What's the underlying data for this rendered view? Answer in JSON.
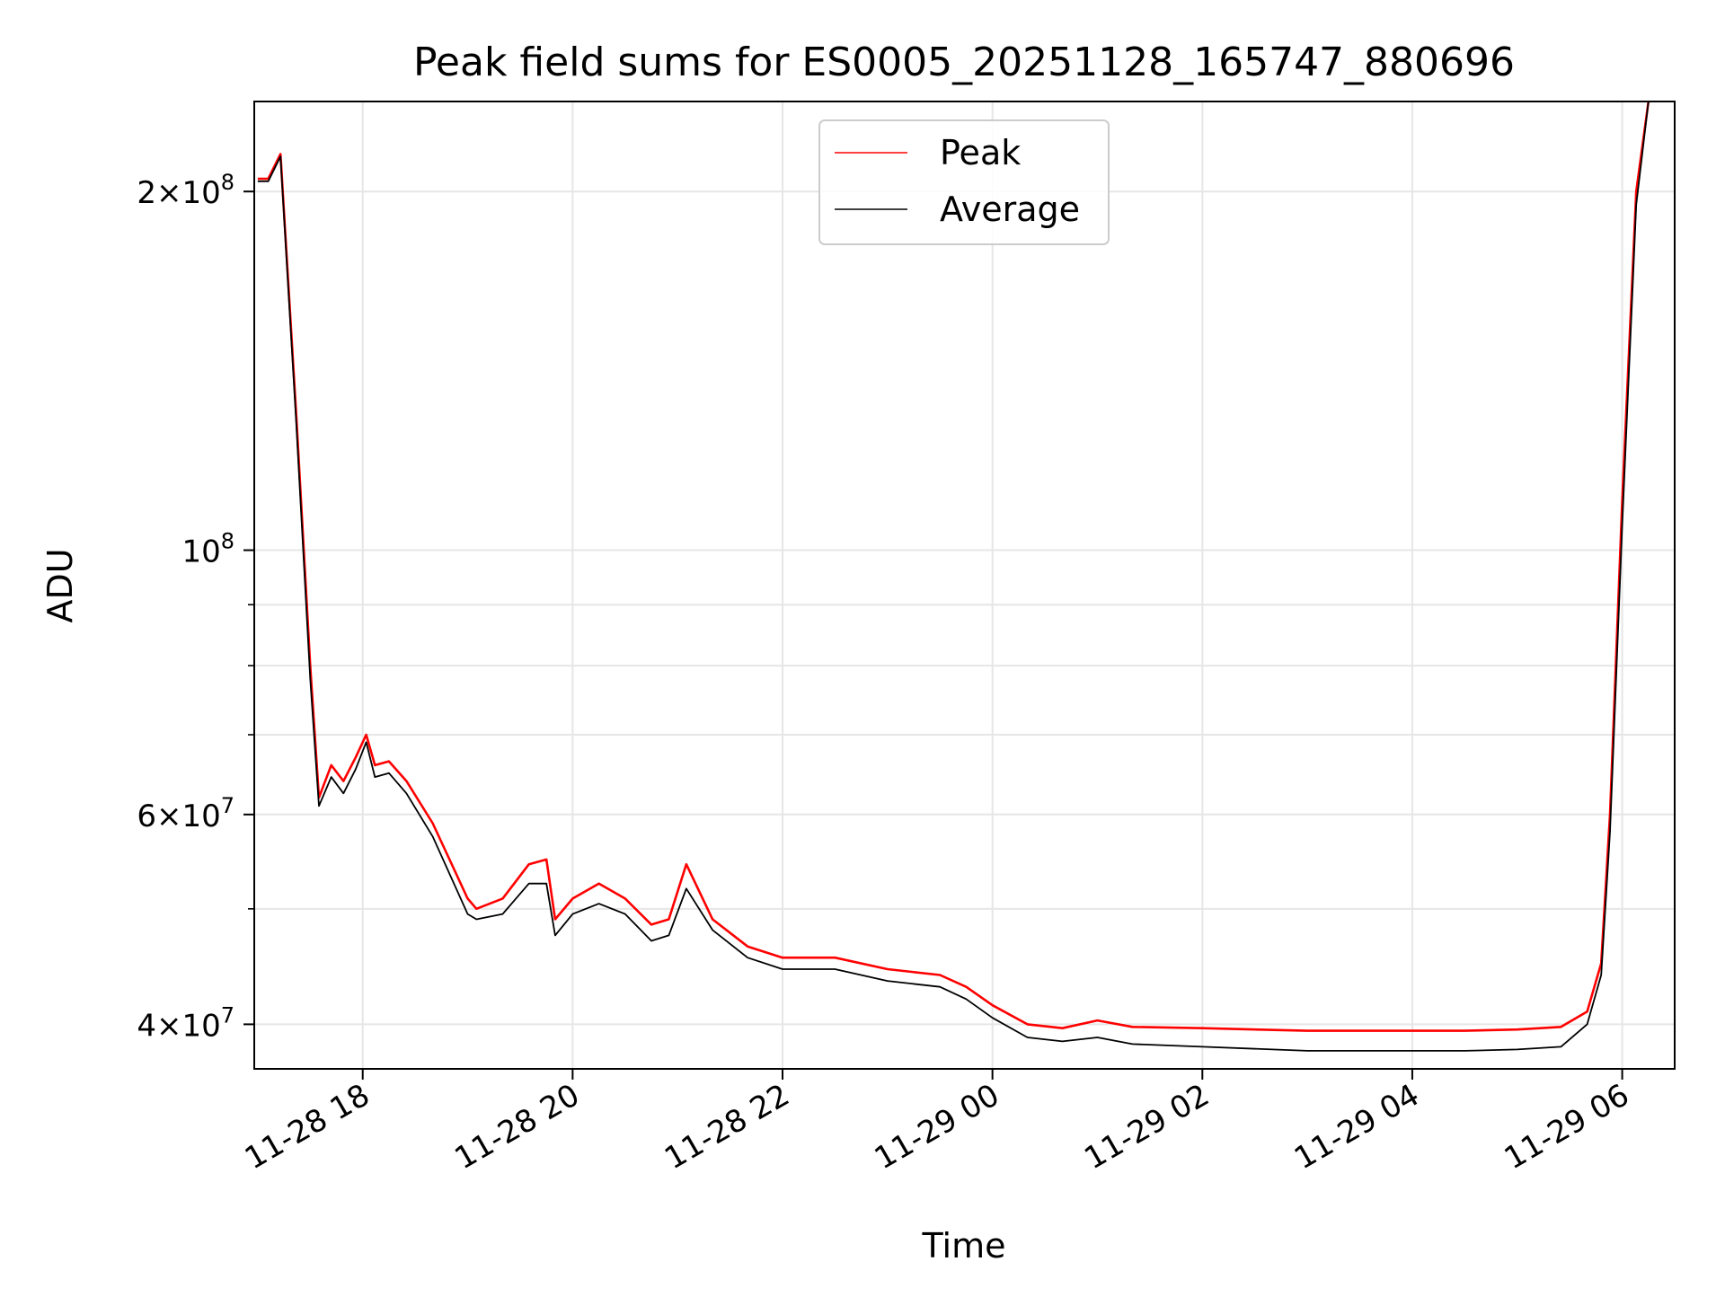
{
  "chart_data": {
    "type": "line",
    "title": "Peak field sums for ES0005_20251128_165747_880696",
    "xlabel": "Time",
    "ylabel": "ADU",
    "y_scale": "log",
    "ylim": [
      36700000,
      238000000
    ],
    "x_range": [
      "11-28 16:58",
      "11-29 06:30"
    ],
    "grid": true,
    "legend_position": "upper center",
    "x_ticks": [
      "11-28 18",
      "11-28 20",
      "11-28 22",
      "11-29 00",
      "11-29 02",
      "11-29 04",
      "11-29 06"
    ],
    "y_ticks": [
      {
        "value": 200000000,
        "base": "2×10",
        "exp": "8"
      },
      {
        "value": 100000000,
        "base": "10",
        "exp": "8"
      },
      {
        "value": 60000000,
        "base": "6×10",
        "exp": "7"
      },
      {
        "value": 40000000,
        "base": "4×10",
        "exp": "7"
      }
    ],
    "series": [
      {
        "name": "Peak",
        "color": "#ff0000",
        "x": [
          "11-28 17:00",
          "11-28 17:06",
          "11-28 17:13",
          "11-28 17:22",
          "11-28 17:30",
          "11-28 17:35",
          "11-28 17:42",
          "11-28 17:49",
          "11-28 17:56",
          "11-28 18:02",
          "11-28 18:07",
          "11-28 18:15",
          "11-28 18:25",
          "11-28 18:40",
          "11-28 19:00",
          "11-28 19:05",
          "11-28 19:20",
          "11-28 19:35",
          "11-28 19:45",
          "11-28 19:50",
          "11-28 20:00",
          "11-28 20:15",
          "11-28 20:30",
          "11-28 20:45",
          "11-28 20:55",
          "11-28 21:05",
          "11-28 21:20",
          "11-28 21:40",
          "11-28 22:00",
          "11-28 22:30",
          "11-28 23:00",
          "11-28 23:30",
          "11-28 23:45",
          "11-29 00:00",
          "11-29 00:20",
          "11-29 00:40",
          "11-29 01:00",
          "11-29 01:20",
          "11-29 02:00",
          "11-29 03:00",
          "11-29 04:00",
          "11-29 04:30",
          "11-29 05:00",
          "11-29 05:25",
          "11-29 05:40",
          "11-29 05:48",
          "11-29 05:53",
          "11-29 06:00",
          "11-29 06:08",
          "11-29 06:15"
        ],
        "values": [
          205000000,
          205000000,
          215000000,
          130000000,
          80000000,
          62000000,
          66000000,
          64000000,
          67000000,
          70000000,
          66000000,
          66500000,
          64000000,
          59000000,
          51000000,
          50000000,
          51000000,
          54500000,
          55000000,
          49000000,
          51000000,
          52500000,
          51000000,
          48500000,
          49000000,
          54500000,
          49000000,
          46500000,
          45500000,
          45500000,
          44500000,
          44000000,
          43000000,
          41500000,
          40000000,
          39700000,
          40300000,
          39800000,
          39700000,
          39500000,
          39500000,
          39500000,
          39600000,
          39800000,
          41000000,
          45000000,
          60000000,
          110000000,
          200000000,
          238000000
        ]
      },
      {
        "name": "Average",
        "color": "#000000",
        "x": [
          "11-28 17:00",
          "11-28 17:06",
          "11-28 17:13",
          "11-28 17:22",
          "11-28 17:30",
          "11-28 17:35",
          "11-28 17:42",
          "11-28 17:49",
          "11-28 17:56",
          "11-28 18:02",
          "11-28 18:07",
          "11-28 18:15",
          "11-28 18:25",
          "11-28 18:40",
          "11-28 19:00",
          "11-28 19:05",
          "11-28 19:20",
          "11-28 19:35",
          "11-28 19:45",
          "11-28 19:50",
          "11-28 20:00",
          "11-28 20:15",
          "11-28 20:30",
          "11-28 20:45",
          "11-28 20:55",
          "11-28 21:05",
          "11-28 21:20",
          "11-28 21:40",
          "11-28 22:00",
          "11-28 22:30",
          "11-28 23:00",
          "11-28 23:30",
          "11-28 23:45",
          "11-29 00:00",
          "11-29 00:20",
          "11-29 00:40",
          "11-29 01:00",
          "11-29 01:20",
          "11-29 02:00",
          "11-29 03:00",
          "11-29 04:00",
          "11-29 04:30",
          "11-29 05:00",
          "11-29 05:25",
          "11-29 05:40",
          "11-29 05:48",
          "11-29 05:53",
          "11-29 06:00",
          "11-29 06:08",
          "11-29 06:15"
        ],
        "values": [
          204000000,
          204000000,
          214000000,
          128000000,
          78000000,
          61000000,
          64500000,
          62500000,
          65500000,
          69000000,
          64500000,
          65000000,
          62500000,
          57500000,
          49500000,
          49000000,
          49500000,
          52500000,
          52500000,
          47500000,
          49500000,
          50500000,
          49500000,
          47000000,
          47500000,
          52000000,
          48000000,
          45500000,
          44500000,
          44500000,
          43500000,
          43000000,
          42000000,
          40500000,
          39000000,
          38700000,
          39000000,
          38500000,
          38300000,
          38000000,
          38000000,
          38000000,
          38100000,
          38300000,
          40000000,
          44000000,
          58000000,
          105000000,
          195000000,
          238000000
        ]
      }
    ]
  }
}
